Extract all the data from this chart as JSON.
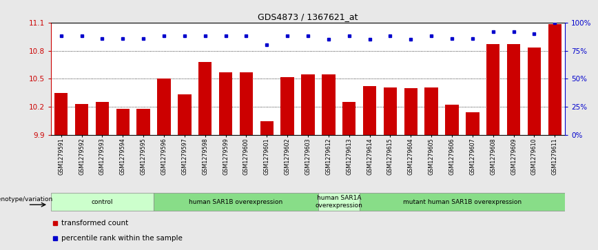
{
  "title": "GDS4873 / 1367621_at",
  "samples": [
    "GSM1279591",
    "GSM1279592",
    "GSM1279593",
    "GSM1279594",
    "GSM1279595",
    "GSM1279596",
    "GSM1279597",
    "GSM1279598",
    "GSM1279599",
    "GSM1279600",
    "GSM1279601",
    "GSM1279602",
    "GSM1279603",
    "GSM1279612",
    "GSM1279613",
    "GSM1279614",
    "GSM1279615",
    "GSM1279604",
    "GSM1279605",
    "GSM1279606",
    "GSM1279607",
    "GSM1279608",
    "GSM1279609",
    "GSM1279610",
    "GSM1279611"
  ],
  "bar_values": [
    10.35,
    10.23,
    10.25,
    10.18,
    10.18,
    10.5,
    10.33,
    10.68,
    10.57,
    10.57,
    10.05,
    10.52,
    10.55,
    10.55,
    10.25,
    10.42,
    10.41,
    10.4,
    10.41,
    10.22,
    10.14,
    10.87,
    10.87,
    10.83,
    11.08
  ],
  "percentile_values": [
    88,
    88,
    86,
    86,
    86,
    88,
    88,
    88,
    88,
    88,
    80,
    88,
    88,
    85,
    88,
    85,
    88,
    85,
    88,
    86,
    86,
    92,
    92,
    90,
    100
  ],
  "ymin": 9.9,
  "ymax": 11.1,
  "yticks": [
    9.9,
    10.2,
    10.5,
    10.8,
    11.1
  ],
  "right_yticks": [
    0,
    25,
    50,
    75,
    100
  ],
  "bar_color": "#cc0000",
  "dot_color": "#0000cc",
  "bg_color": "#ffffff",
  "fig_bg": "#e8e8e8",
  "groups": [
    {
      "label": "control",
      "start": 0,
      "end": 5,
      "color": "#ccffcc"
    },
    {
      "label": "human SAR1B overexpression",
      "start": 5,
      "end": 13,
      "color": "#88dd88"
    },
    {
      "label": "human SAR1A\noverexpression",
      "start": 13,
      "end": 15,
      "color": "#ccffcc"
    },
    {
      "label": "mutant human SAR1B overexpression",
      "start": 15,
      "end": 25,
      "color": "#88dd88"
    }
  ],
  "legend_label_bar": "transformed count",
  "legend_label_dot": "percentile rank within the sample",
  "genotype_label": "genotype/variation",
  "xlabel_color": "#cc0000",
  "right_axis_color": "#0000cc"
}
